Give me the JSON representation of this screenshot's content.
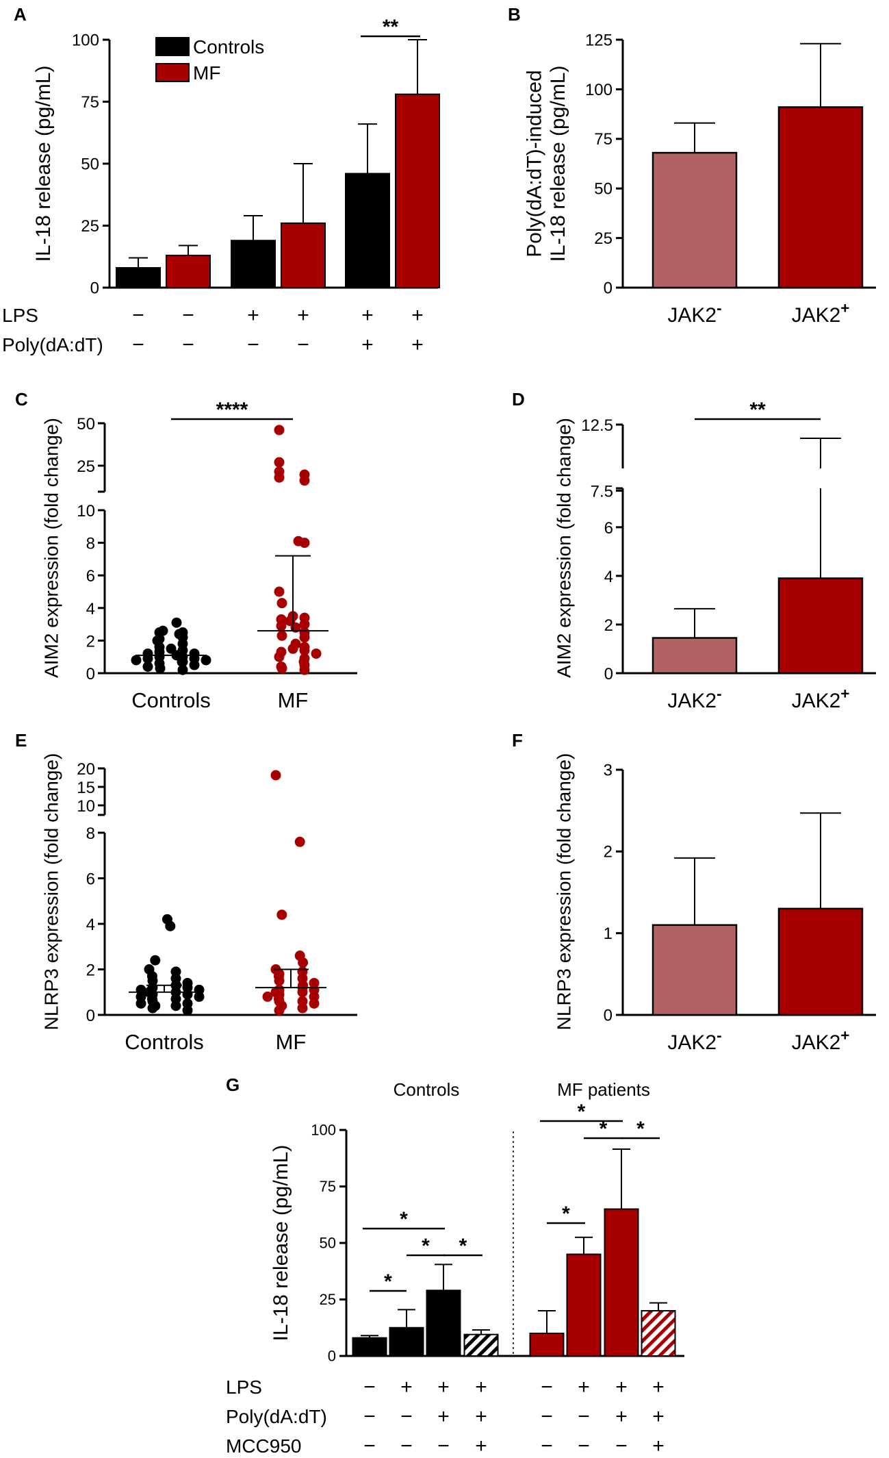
{
  "colors": {
    "controls": "#000000",
    "mf": "#a80000",
    "jak_neg": "#b26262",
    "jak_pos": "#a80000"
  },
  "chart_data": [
    {
      "panel": "A",
      "type": "bar",
      "ylabel": "IL-18 release (pg/mL)",
      "ylim": [
        0,
        100
      ],
      "yticks": [
        "0",
        "25",
        "50",
        "75",
        "100"
      ],
      "legend": [
        {
          "name": "Controls",
          "color": "#000000"
        },
        {
          "name": "MF",
          "color": "#a80000"
        }
      ],
      "bars": [
        {
          "series": "Controls",
          "value": 8,
          "err": 12
        },
        {
          "series": "MF",
          "value": 13,
          "err": 17
        },
        {
          "series": "Controls",
          "value": 19,
          "err": 29
        },
        {
          "series": "MF",
          "value": 26,
          "err": 50
        },
        {
          "series": "Controls",
          "value": 46,
          "err": 66
        },
        {
          "series": "MF",
          "value": 78,
          "err": 100
        }
      ],
      "treatments": [
        {
          "label": "LPS",
          "signs": [
            "−",
            "−",
            "+",
            "+",
            "+",
            "+"
          ]
        },
        {
          "label": "Poly(dA:dT)",
          "signs": [
            "−",
            "−",
            "−",
            "−",
            "+",
            "+"
          ]
        }
      ],
      "significance": [
        {
          "from": 4,
          "to": 5,
          "label": "**"
        }
      ]
    },
    {
      "panel": "B",
      "type": "bar",
      "ylabel": [
        "Poly(dA:dT)-induced",
        "IL-18 release (pg/mL)"
      ],
      "ylim": [
        0,
        125
      ],
      "yticks": [
        "0",
        "25",
        "50",
        "75",
        "100",
        "125"
      ],
      "categories": [
        "JAK2−",
        "JAK2+"
      ],
      "values": [
        68,
        91
      ],
      "errors": [
        83,
        123
      ]
    },
    {
      "panel": "C",
      "type": "scatter",
      "ylabel": "AIM2 expression (fold change)",
      "yticks_lower": [
        "0",
        "2",
        "4",
        "6",
        "8",
        "10"
      ],
      "yticks_upper": [
        "25",
        "50"
      ],
      "categories": [
        "Controls",
        "MF"
      ],
      "groups": [
        {
          "name": "Controls",
          "mean": 1.1,
          "sd_upper": 1.1,
          "values": [
            3.1,
            2.6,
            2.5,
            2.5,
            2.4,
            2.2,
            2.1,
            2.0,
            1.8,
            1.6,
            1.5,
            1.4,
            1.3,
            1.2,
            1.2,
            1.1,
            1.0,
            1.0,
            0.9,
            0.9,
            0.8,
            0.8,
            0.7,
            0.7,
            0.6,
            0.5,
            0.4,
            0.3,
            0.2
          ]
        },
        {
          "name": "MF",
          "mean": 2.6,
          "sd_upper": 7.2,
          "values": [
            46,
            27,
            23,
            22,
            21,
            20,
            8.1,
            8.0,
            5.0,
            4.3,
            3.5,
            3.4,
            3.3,
            3.2,
            3.0,
            2.9,
            2.8,
            2.5,
            2.3,
            2.2,
            1.8,
            1.6,
            1.5,
            1.4,
            1.3,
            1.2,
            1.0,
            0.9,
            0.7,
            0.5,
            0.4,
            0.3,
            0.2
          ]
        }
      ],
      "significance": [
        {
          "from": 0,
          "to": 1,
          "label": "****"
        }
      ]
    },
    {
      "panel": "D",
      "type": "bar",
      "ylabel": "AIM2 expression (fold change)",
      "yticks_lower": [
        "0",
        "2",
        "4",
        "6"
      ],
      "yticks_upper": [
        "7.5",
        "12.5"
      ],
      "categories": [
        "JAK2−",
        "JAK2+"
      ],
      "values": [
        1.45,
        3.9
      ],
      "errors": [
        2.65,
        10.8
      ],
      "significance": [
        {
          "from": 0,
          "to": 1,
          "label": "**"
        }
      ]
    },
    {
      "panel": "E",
      "type": "scatter",
      "ylabel": "NLRP3 expression (fold change)",
      "yticks_lower": [
        "0",
        "2",
        "4",
        "6",
        "8"
      ],
      "yticks_upper": [
        "10",
        "15",
        "20"
      ],
      "categories": [
        "Controls",
        "MF"
      ],
      "groups": [
        {
          "name": "Controls",
          "mean": 1.0,
          "sd_upper": 1.3,
          "values": [
            4.2,
            3.9,
            2.4,
            2.0,
            1.9,
            1.7,
            1.6,
            1.5,
            1.4,
            1.3,
            1.3,
            1.2,
            1.2,
            1.1,
            1.1,
            1.0,
            1.0,
            0.9,
            0.9,
            0.8,
            0.8,
            0.7,
            0.7,
            0.6,
            0.5,
            0.5,
            0.4,
            0.4,
            0.3,
            0.2
          ]
        },
        {
          "name": "MF",
          "mean": 1.2,
          "sd_upper": 2.0,
          "values": [
            18,
            7.6,
            4.4,
            2.6,
            2.3,
            2.0,
            1.9,
            1.8,
            1.7,
            1.6,
            1.5,
            1.4,
            1.3,
            1.2,
            1.1,
            1.1,
            1.0,
            1.0,
            0.9,
            0.8,
            0.8,
            0.7,
            0.6,
            0.6,
            0.5,
            0.4,
            0.3,
            0.2
          ]
        }
      ]
    },
    {
      "panel": "F",
      "type": "bar",
      "ylabel": "NLRP3 expression (fold change)",
      "ylim": [
        0,
        3
      ],
      "yticks": [
        "0",
        "1",
        "2",
        "3"
      ],
      "categories": [
        "JAK2−",
        "JAK2+"
      ],
      "values": [
        1.1,
        1.3
      ],
      "errors": [
        1.92,
        2.47
      ]
    },
    {
      "panel": "G",
      "type": "bar",
      "ylabel": "IL-18 release (pg/mL)",
      "ylim": [
        0,
        100
      ],
      "yticks": [
        "0",
        "25",
        "50",
        "75",
        "100"
      ],
      "group_titles": [
        "Controls",
        "MF patients"
      ],
      "bars": [
        {
          "group": "Controls",
          "value": 8,
          "err": 9,
          "hatched": false
        },
        {
          "group": "Controls",
          "value": 12.5,
          "err": 20.5,
          "hatched": false
        },
        {
          "group": "Controls",
          "value": 29,
          "err": 40.5,
          "hatched": false
        },
        {
          "group": "Controls",
          "value": 9.5,
          "err": 11.5,
          "hatched": true
        },
        {
          "group": "MF patients",
          "value": 10,
          "err": 20,
          "hatched": false
        },
        {
          "group": "MF patients",
          "value": 45,
          "err": 52.5,
          "hatched": false
        },
        {
          "group": "MF patients",
          "value": 65,
          "err": 91.5,
          "hatched": false
        },
        {
          "group": "MF patients",
          "value": 20,
          "err": 23.5,
          "hatched": true
        }
      ],
      "treatments": [
        {
          "label": "LPS",
          "signs": [
            "−",
            "+",
            "+",
            "+",
            "−",
            "+",
            "+",
            "+"
          ]
        },
        {
          "label": "Poly(dA:dT)",
          "signs": [
            "−",
            "−",
            "+",
            "+",
            "−",
            "−",
            "+",
            "+"
          ]
        },
        {
          "label": "MCC950",
          "signs": [
            "−",
            "−",
            "−",
            "+",
            "−",
            "−",
            "−",
            "+"
          ]
        }
      ],
      "significance": [
        {
          "from": 0,
          "to": 1,
          "label": "*"
        },
        {
          "from": 0,
          "to": 2,
          "label": "*"
        },
        {
          "from": 1,
          "to": 2,
          "label": "*"
        },
        {
          "from": 2,
          "to": 3,
          "label": "*"
        },
        {
          "from": 4,
          "to": 5,
          "label": "*"
        },
        {
          "from": 4,
          "to": 6,
          "label": "*"
        },
        {
          "from": 5,
          "to": 6,
          "label": "*"
        },
        {
          "from": 6,
          "to": 7,
          "label": "*"
        }
      ]
    }
  ]
}
